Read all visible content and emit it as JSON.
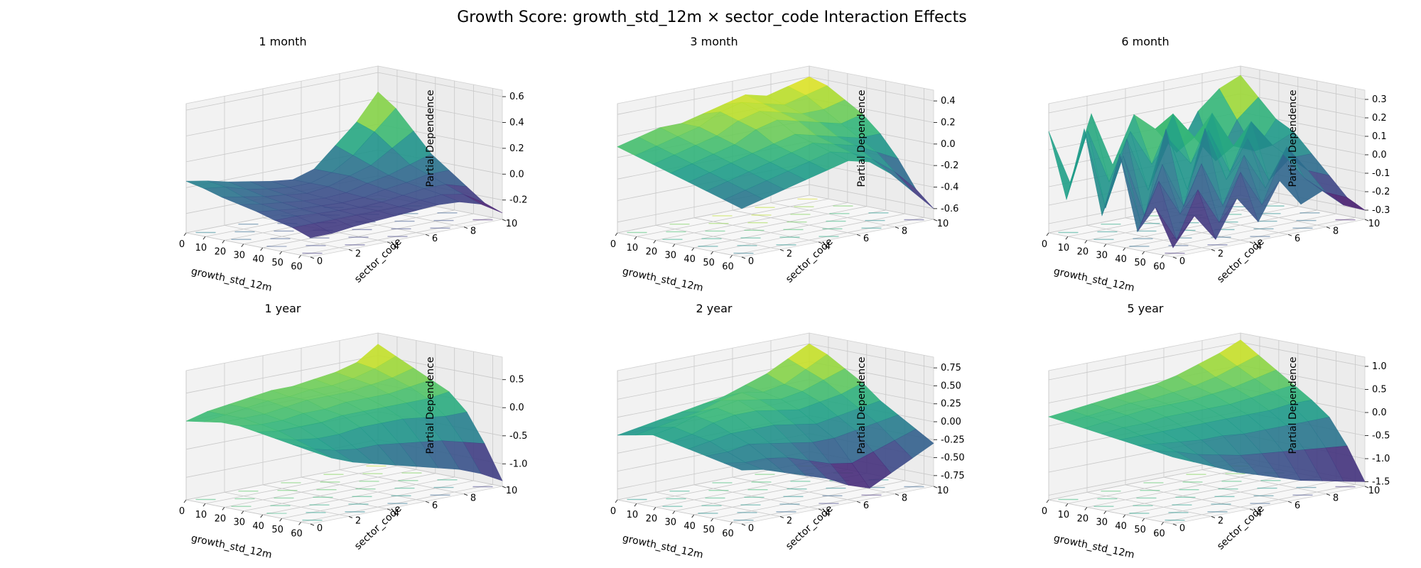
{
  "figure": {
    "title": "Growth Score: growth_std_12m × sector_code Interaction Effects"
  },
  "chart_data": [
    {
      "type": "surface3d",
      "title": "1 month",
      "xlabel": "growth_std_12m",
      "ylabel": "sector_code",
      "zlabel": "Partial Dependence",
      "x_ticks": [
        "0",
        "10",
        "20",
        "30",
        "40",
        "50",
        "60"
      ],
      "y_ticks": [
        "0",
        "2",
        "4",
        "6",
        "8",
        "10"
      ],
      "z_ticks": [
        "-0.2",
        "0.0",
        "0.2",
        "0.4",
        "0.6"
      ],
      "xlim": [
        0,
        65
      ],
      "ylim": [
        0,
        10
      ],
      "zlim": [
        -0.35,
        0.65
      ],
      "colormap": "viridis",
      "grid": true,
      "z_values": [
        [
          0.05,
          0.02,
          -0.02,
          -0.05,
          -0.08,
          -0.1,
          -0.05,
          0.1,
          0.25,
          0.45
        ],
        [
          0.02,
          0.0,
          -0.05,
          -0.08,
          -0.1,
          -0.1,
          -0.05,
          0.05,
          0.2,
          0.35
        ],
        [
          -0.02,
          -0.05,
          -0.08,
          -0.1,
          -0.12,
          -0.1,
          -0.05,
          0.0,
          0.1,
          0.2
        ],
        [
          -0.05,
          -0.08,
          -0.1,
          -0.12,
          -0.13,
          -0.12,
          -0.08,
          -0.05,
          0.0,
          0.05
        ],
        [
          -0.08,
          -0.1,
          -0.12,
          -0.13,
          -0.14,
          -0.13,
          -0.1,
          -0.08,
          -0.05,
          -0.05
        ],
        [
          -0.12,
          -0.12,
          -0.13,
          -0.14,
          -0.15,
          -0.14,
          -0.12,
          -0.1,
          -0.1,
          -0.15
        ],
        [
          -0.15,
          -0.15,
          -0.15,
          -0.15,
          -0.15,
          -0.15,
          -0.13,
          -0.12,
          -0.15,
          -0.25
        ],
        [
          -0.2,
          -0.2,
          -0.18,
          -0.17,
          -0.16,
          -0.15,
          -0.14,
          -0.15,
          -0.2,
          -0.3
        ]
      ]
    },
    {
      "type": "surface3d",
      "title": "3 month",
      "xlabel": "growth_std_12m",
      "ylabel": "sector_code",
      "zlabel": "Partial Dependence",
      "x_ticks": [
        "0",
        "10",
        "20",
        "30",
        "40",
        "50",
        "60"
      ],
      "y_ticks": [
        "0",
        "2",
        "4",
        "6",
        "8",
        "10"
      ],
      "z_ticks": [
        "-0.6",
        "-0.4",
        "-0.2",
        "0.0",
        "0.2",
        "0.4"
      ],
      "xlim": [
        0,
        65
      ],
      "ylim": [
        0,
        10
      ],
      "zlim": [
        -0.7,
        0.5
      ],
      "colormap": "viridis",
      "grid": true,
      "z_values": [
        [
          0.1,
          0.15,
          0.2,
          0.2,
          0.25,
          0.3,
          0.35,
          0.3,
          0.35,
          0.4
        ],
        [
          0.05,
          0.1,
          0.15,
          0.2,
          0.3,
          0.35,
          0.3,
          0.25,
          0.3,
          0.35
        ],
        [
          0.0,
          0.05,
          0.1,
          0.15,
          0.25,
          0.3,
          0.25,
          0.2,
          0.2,
          0.25
        ],
        [
          -0.05,
          0.0,
          0.05,
          0.1,
          0.2,
          0.25,
          0.2,
          0.15,
          0.1,
          0.15
        ],
        [
          -0.1,
          -0.05,
          0.0,
          0.05,
          0.1,
          0.15,
          0.1,
          0.05,
          0.0,
          0.0
        ],
        [
          -0.15,
          -0.1,
          -0.05,
          0.0,
          0.05,
          0.1,
          0.05,
          0.0,
          -0.1,
          -0.2
        ],
        [
          -0.2,
          -0.15,
          -0.1,
          -0.05,
          0.0,
          0.05,
          0.0,
          -0.1,
          -0.25,
          -0.45
        ],
        [
          -0.25,
          -0.2,
          -0.15,
          -0.1,
          -0.05,
          0.0,
          -0.05,
          -0.2,
          -0.4,
          -0.6
        ]
      ]
    },
    {
      "type": "surface3d",
      "title": "6 month",
      "xlabel": "growth_std_12m",
      "ylabel": "sector_code",
      "zlabel": "Partial Dependence",
      "x_ticks": [
        "0",
        "10",
        "20",
        "30",
        "40",
        "50",
        "60"
      ],
      "y_ticks": [
        "0",
        "2",
        "4",
        "6",
        "8",
        "10"
      ],
      "z_ticks": [
        "-0.3",
        "-0.2",
        "-0.1",
        "0.0",
        "0.1",
        "0.2",
        "0.3"
      ],
      "xlim": [
        0,
        65
      ],
      "ylim": [
        0,
        10
      ],
      "zlim": [
        -0.35,
        0.35
      ],
      "colormap": "viridis",
      "grid": true,
      "z_values": [
        [
          0.2,
          -0.1,
          0.25,
          -0.05,
          0.2,
          0.1,
          -0.05,
          0.15,
          0.25,
          0.3
        ],
        [
          -0.15,
          0.2,
          -0.1,
          0.15,
          -0.05,
          0.2,
          0.05,
          -0.1,
          0.1,
          0.2
        ],
        [
          0.25,
          -0.2,
          0.15,
          -0.15,
          0.1,
          -0.05,
          0.2,
          0.0,
          -0.05,
          0.1
        ],
        [
          -0.2,
          0.1,
          -0.25,
          0.2,
          -0.15,
          0.15,
          -0.1,
          0.15,
          0.0,
          0.05
        ],
        [
          0.15,
          -0.25,
          0.05,
          -0.2,
          0.2,
          -0.1,
          0.1,
          -0.15,
          -0.05,
          -0.05
        ],
        [
          -0.25,
          0.0,
          -0.2,
          0.05,
          -0.2,
          0.05,
          -0.15,
          0.05,
          -0.1,
          -0.15
        ],
        [
          -0.1,
          -0.3,
          -0.05,
          -0.25,
          0.0,
          -0.2,
          0.05,
          -0.1,
          -0.2,
          -0.25
        ],
        [
          -0.3,
          -0.15,
          -0.3,
          -0.1,
          -0.25,
          -0.05,
          -0.2,
          -0.15,
          -0.25,
          -0.3
        ]
      ]
    },
    {
      "type": "surface3d",
      "title": "1 year",
      "xlabel": "growth_std_12m",
      "ylabel": "sector_code",
      "zlabel": "Partial Dependence",
      "x_ticks": [
        "0",
        "10",
        "20",
        "30",
        "40",
        "50",
        "60"
      ],
      "y_ticks": [
        "0",
        "2",
        "4",
        "6",
        "8",
        "10"
      ],
      "z_ticks": [
        "-1.0",
        "-0.5",
        "0.0",
        "0.5"
      ],
      "xlim": [
        0,
        65
      ],
      "ylim": [
        0,
        10
      ],
      "zlim": [
        -1.4,
        0.9
      ],
      "colormap": "viridis",
      "grid": true,
      "z_values": [
        [
          0.0,
          0.1,
          0.15,
          0.2,
          0.25,
          0.25,
          0.3,
          0.35,
          0.45,
          0.7
        ],
        [
          0.05,
          0.1,
          0.15,
          0.2,
          0.2,
          0.25,
          0.25,
          0.3,
          0.4,
          0.55
        ],
        [
          0.1,
          0.1,
          0.1,
          0.15,
          0.2,
          0.2,
          0.2,
          0.25,
          0.3,
          0.4
        ],
        [
          0.1,
          0.05,
          0.05,
          0.1,
          0.1,
          0.15,
          0.15,
          0.15,
          0.2,
          0.25
        ],
        [
          0.05,
          0.0,
          0.0,
          0.0,
          0.05,
          0.05,
          0.05,
          0.05,
          0.05,
          0.1
        ],
        [
          0.0,
          -0.1,
          -0.15,
          -0.15,
          -0.1,
          -0.1,
          -0.1,
          -0.15,
          -0.2,
          -0.2
        ],
        [
          -0.05,
          -0.2,
          -0.3,
          -0.35,
          -0.35,
          -0.4,
          -0.45,
          -0.5,
          -0.6,
          -0.7
        ],
        [
          -0.1,
          -0.3,
          -0.45,
          -0.55,
          -0.65,
          -0.75,
          -0.85,
          -0.95,
          -1.1,
          -1.3
        ]
      ]
    },
    {
      "type": "surface3d",
      "title": "2 year",
      "xlabel": "growth_std_12m",
      "ylabel": "sector_code",
      "zlabel": "Partial Dependence",
      "x_ticks": [
        "0",
        "10",
        "20",
        "30",
        "40",
        "50",
        "60"
      ],
      "y_ticks": [
        "0",
        "2",
        "4",
        "6",
        "8",
        "10"
      ],
      "z_ticks": [
        "-0.75",
        "-0.50",
        "-0.25",
        "0.00",
        "0.25",
        "0.50",
        "0.75"
      ],
      "xlim": [
        0,
        65
      ],
      "ylim": [
        0,
        10
      ],
      "zlim": [
        -0.9,
        0.9
      ],
      "colormap": "viridis",
      "grid": true,
      "z_values": [
        [
          0.0,
          0.05,
          0.1,
          0.15,
          0.2,
          0.25,
          0.35,
          0.45,
          0.6,
          0.75
        ],
        [
          0.05,
          0.1,
          0.15,
          0.2,
          0.3,
          0.35,
          0.3,
          0.35,
          0.5,
          0.65
        ],
        [
          0.1,
          0.15,
          0.25,
          0.3,
          0.35,
          0.3,
          0.25,
          0.3,
          0.4,
          0.5
        ],
        [
          0.05,
          0.1,
          0.2,
          0.25,
          0.25,
          0.2,
          0.15,
          0.2,
          0.25,
          0.35
        ],
        [
          0.0,
          0.05,
          0.1,
          0.1,
          0.1,
          0.05,
          0.0,
          0.05,
          0.1,
          0.15
        ],
        [
          -0.05,
          -0.05,
          0.0,
          -0.05,
          -0.1,
          -0.15,
          -0.15,
          -0.1,
          -0.05,
          0.0
        ],
        [
          -0.1,
          -0.15,
          -0.15,
          -0.2,
          -0.3,
          -0.4,
          -0.45,
          -0.35,
          -0.25,
          -0.15
        ],
        [
          -0.15,
          -0.2,
          -0.3,
          -0.4,
          -0.5,
          -0.65,
          -0.75,
          -0.6,
          -0.45,
          -0.3
        ]
      ]
    },
    {
      "type": "surface3d",
      "title": "5 year",
      "xlabel": "growth_std_12m",
      "ylabel": "sector_code",
      "zlabel": "Partial Dependence",
      "x_ticks": [
        "0",
        "10",
        "20",
        "30",
        "40",
        "50",
        "60"
      ],
      "y_ticks": [
        "0",
        "2",
        "4",
        "6",
        "8",
        "10"
      ],
      "z_ticks": [
        "-1.5",
        "-1.0",
        "-0.5",
        "0.0",
        "0.5",
        "1.0"
      ],
      "xlim": [
        0,
        65
      ],
      "ylim": [
        0,
        10
      ],
      "zlim": [
        -1.6,
        1.2
      ],
      "colormap": "viridis",
      "grid": true,
      "z_values": [
        [
          0.2,
          0.25,
          0.3,
          0.35,
          0.4,
          0.45,
          0.55,
          0.7,
          0.85,
          1.05
        ],
        [
          0.15,
          0.2,
          0.25,
          0.3,
          0.3,
          0.35,
          0.4,
          0.5,
          0.65,
          0.8
        ],
        [
          0.1,
          0.15,
          0.2,
          0.25,
          0.25,
          0.25,
          0.3,
          0.35,
          0.45,
          0.55
        ],
        [
          0.05,
          0.1,
          0.1,
          0.15,
          0.15,
          0.15,
          0.15,
          0.2,
          0.25,
          0.3
        ],
        [
          0.0,
          0.0,
          0.0,
          0.0,
          0.0,
          0.0,
          0.0,
          0.0,
          0.05,
          0.05
        ],
        [
          -0.05,
          -0.1,
          -0.15,
          -0.2,
          -0.2,
          -0.25,
          -0.25,
          -0.25,
          -0.25,
          -0.25
        ],
        [
          -0.1,
          -0.2,
          -0.35,
          -0.45,
          -0.55,
          -0.6,
          -0.65,
          -0.7,
          -0.75,
          -0.8
        ],
        [
          -0.15,
          -0.35,
          -0.55,
          -0.75,
          -0.9,
          -1.05,
          -1.2,
          -1.3,
          -1.4,
          -1.5
        ]
      ]
    }
  ]
}
